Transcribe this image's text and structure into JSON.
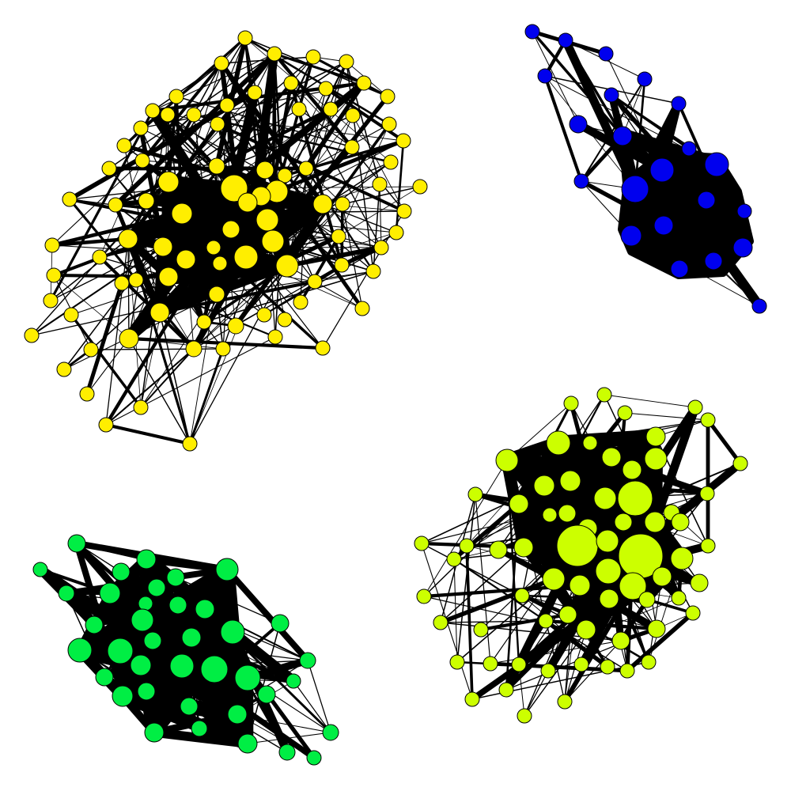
{
  "clusters": [
    {
      "name": "yellow-cluster",
      "color": "#ffee00"
    },
    {
      "name": "blue-cluster",
      "color": "#0000ee"
    },
    {
      "name": "chartreuse-cluster",
      "color": "#ccff00"
    },
    {
      "name": "green-cluster",
      "color": "#00ee44"
    }
  ]
}
